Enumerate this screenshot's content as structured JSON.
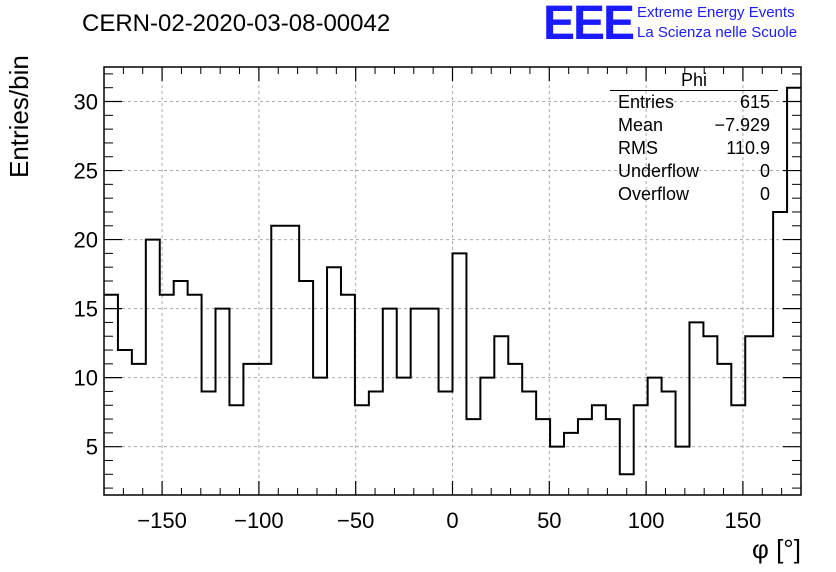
{
  "title": "CERN-02-2020-03-08-00042",
  "logo": {
    "mark": "EEE",
    "line1": "Extreme Energy Events",
    "line2": "La Scienza nelle Scuole",
    "color": "#1a1aff"
  },
  "stats": {
    "name": "Phi",
    "rows": [
      {
        "label": "Entries",
        "value": "615"
      },
      {
        "label": "Mean",
        "value": "−7.929"
      },
      {
        "label": "RMS",
        "value": "110.9"
      },
      {
        "label": "Underflow",
        "value": "0"
      },
      {
        "label": "Overflow",
        "value": "0"
      }
    ]
  },
  "chart_data": {
    "type": "bar",
    "style": "step-histogram",
    "xlabel": "φ [°]",
    "ylabel": "Entries/bin",
    "xlim": [
      -180,
      180
    ],
    "ylim": [
      1.5,
      32.5
    ],
    "grid": true,
    "bin_edges_start": -180,
    "bin_width": 7.2,
    "values": [
      16,
      12,
      11,
      20,
      16,
      17,
      16,
      9,
      15,
      8,
      11,
      11,
      21,
      21,
      17,
      10,
      18,
      16,
      8,
      9,
      15,
      10,
      15,
      15,
      9,
      19,
      7,
      10,
      13,
      11,
      9,
      7,
      5,
      6,
      7,
      8,
      7,
      3,
      8,
      10,
      9,
      5,
      14,
      13,
      11,
      8,
      13,
      13,
      22,
      31
    ],
    "xticks": [
      -150,
      -100,
      -50,
      0,
      50,
      100,
      150
    ],
    "xtick_labels": [
      "−150",
      "−100",
      "−50",
      "0",
      "50",
      "100",
      "150"
    ],
    "yticks": [
      5,
      10,
      15,
      20,
      25,
      30
    ],
    "ytick_labels": [
      "5",
      "10",
      "15",
      "20",
      "25",
      "30"
    ]
  }
}
